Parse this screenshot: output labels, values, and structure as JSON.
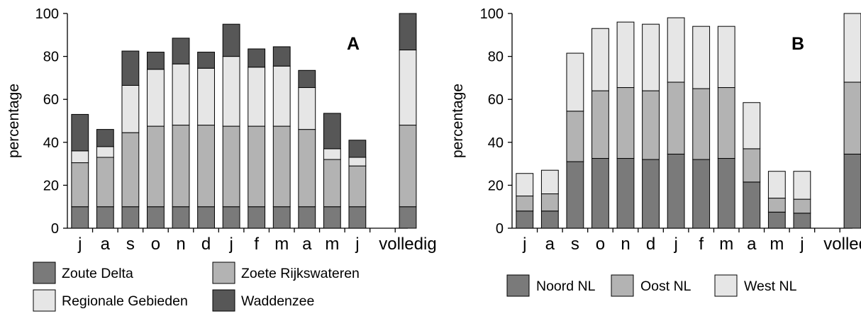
{
  "chart_data": [
    {
      "type": "bar",
      "stacked": true,
      "panel_label": "A",
      "ylabel": "percentage",
      "ylim": [
        0,
        100
      ],
      "yticks": [
        0,
        20,
        40,
        60,
        80,
        100
      ],
      "categories": [
        "j",
        "a",
        "s",
        "o",
        "n",
        "d",
        "j",
        "f",
        "m",
        "a",
        "m",
        "j",
        "",
        "volledig"
      ],
      "series": [
        {
          "name": "Zoute Delta",
          "color": "#7a7a7a",
          "values": [
            10,
            10,
            10,
            10,
            10,
            10,
            10,
            10,
            10,
            10,
            10,
            10,
            0,
            10
          ]
        },
        {
          "name": "Zoete Rijkswateren",
          "color": "#b3b3b3",
          "values": [
            20.5,
            23,
            34.5,
            37.5,
            38,
            38,
            37.5,
            37.5,
            37.5,
            36,
            22,
            19,
            0,
            38
          ]
        },
        {
          "name": "Regionale Gebieden",
          "color": "#e6e6e6",
          "values": [
            5.5,
            5,
            22,
            26.5,
            28.5,
            26.5,
            32.5,
            27.5,
            28,
            19.5,
            5,
            4,
            0,
            35
          ]
        },
        {
          "name": "Waddenzee",
          "color": "#575757",
          "values": [
            17,
            8,
            16,
            8,
            12,
            7.5,
            15,
            8.5,
            9,
            8,
            16.5,
            8,
            0,
            17
          ]
        }
      ],
      "legend": "bottom"
    },
    {
      "type": "bar",
      "stacked": true,
      "panel_label": "B",
      "ylabel": "percentage",
      "ylim": [
        0,
        100
      ],
      "yticks": [
        0,
        20,
        40,
        60,
        80,
        100
      ],
      "categories": [
        "j",
        "a",
        "s",
        "o",
        "n",
        "d",
        "j",
        "f",
        "m",
        "a",
        "m",
        "j",
        "",
        "volledig"
      ],
      "series": [
        {
          "name": "Noord NL",
          "color": "#7a7a7a",
          "values": [
            8,
            8,
            31,
            32.5,
            32.5,
            32,
            34.5,
            32,
            32.5,
            21.5,
            7.5,
            7,
            0,
            34.5
          ]
        },
        {
          "name": "Oost NL",
          "color": "#b3b3b3",
          "values": [
            7,
            8,
            23.5,
            31.5,
            33,
            32,
            33.5,
            33,
            33,
            15.5,
            6.5,
            6.5,
            0,
            33.5
          ]
        },
        {
          "name": "West NL",
          "color": "#e6e6e6",
          "values": [
            10.5,
            11,
            27,
            29,
            30.5,
            31,
            30,
            29,
            28.5,
            21.5,
            12.5,
            13,
            0,
            32
          ]
        }
      ],
      "legend": "bottom"
    }
  ]
}
